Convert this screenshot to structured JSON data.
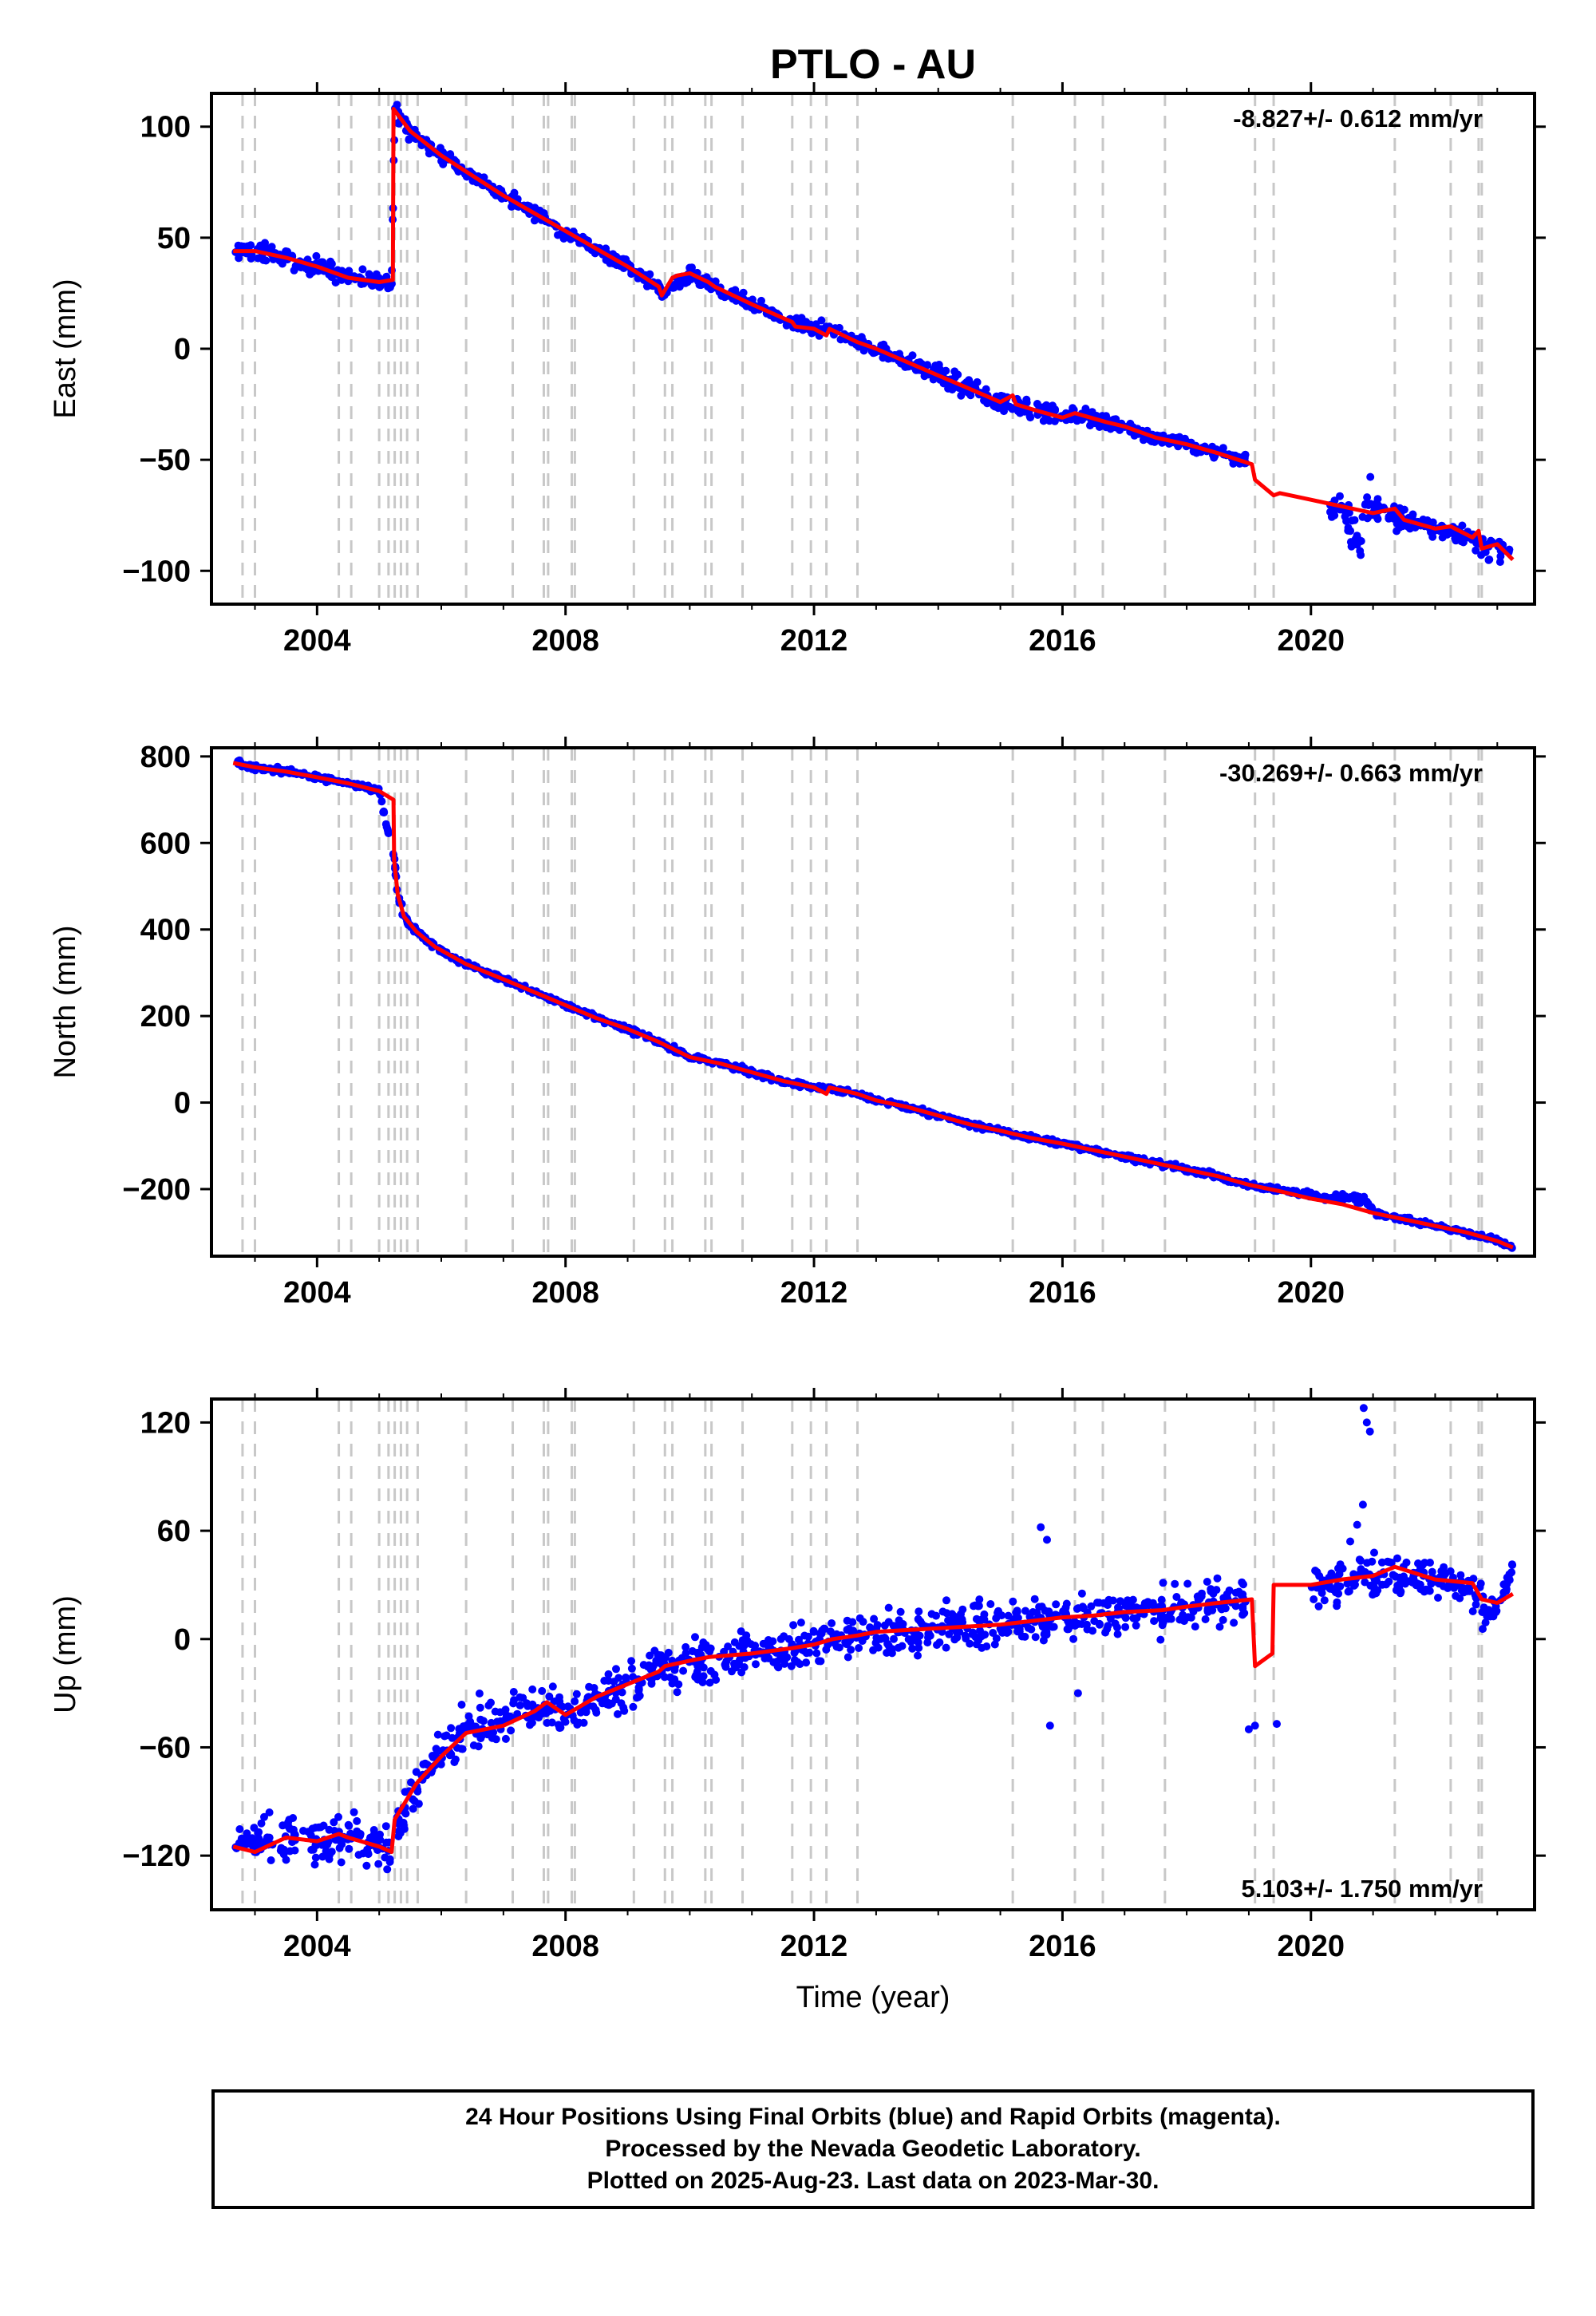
{
  "title": "PTLO - AU",
  "x_axis_label": "Time (year)",
  "x_ticks": [
    2004,
    2008,
    2012,
    2016,
    2020
  ],
  "colors": {
    "final_points": "#0000ff",
    "model": "#ff0000",
    "event_lines": "#c8c8c8",
    "frame": "#000000"
  },
  "event_years": [
    2002.8,
    2003.0,
    2004.35,
    2004.55,
    2005.0,
    2005.15,
    2005.25,
    2005.35,
    2005.45,
    2005.62,
    2006.4,
    2007.15,
    2007.65,
    2007.72,
    2008.1,
    2008.15,
    2009.1,
    2009.6,
    2009.72,
    2010.25,
    2010.35,
    2010.85,
    2011.65,
    2011.95,
    2012.2,
    2012.7,
    2015.2,
    2016.2,
    2016.65,
    2017.65,
    2019.1,
    2019.4,
    2021.35,
    2022.25,
    2022.7,
    2022.75
  ],
  "footer": {
    "line1": "24 Hour Positions Using Final Orbits (blue) and Rapid Orbits (magenta).",
    "line2": "Processed by the Nevada Geodetic Laboratory.",
    "line3": "Plotted on 2025-Aug-23. Last data on 2023-Mar-30."
  },
  "chart_data": [
    {
      "type": "scatter",
      "component": "east",
      "ylabel": "East (mm)",
      "xlabel": "",
      "rate_label": "-8.827+/- 0.612 mm/yr",
      "rate_label_position": "top-right",
      "xlim": [
        2002.3,
        2023.6
      ],
      "ylim": [
        -115,
        115
      ],
      "y_ticks": [
        100,
        50,
        0,
        -50,
        -100
      ],
      "grid": false,
      "series": [
        {
          "name": "",
          "style": "model",
          "x": [
            2002.65,
            2003.0,
            2003.5,
            2004.0,
            2004.5,
            2005.0,
            2005.22,
            2005.23,
            2005.5,
            2006.0,
            2006.5,
            2007.0,
            2007.5,
            2008.0,
            2008.5,
            2009.0,
            2009.5,
            2009.55,
            2009.72,
            2009.8,
            2010.0,
            2010.3,
            2010.4,
            2011.0,
            2011.65,
            2011.7,
            2012.0,
            2012.2,
            2012.25,
            2012.7,
            2013.0,
            2013.5,
            2014.0,
            2014.5,
            2015.0,
            2015.2,
            2015.25,
            2015.6,
            2016.0,
            2016.2,
            2016.7,
            2017.0,
            2017.5,
            2018.0,
            2018.5,
            2019.05,
            2019.1,
            2019.4,
            2019.5,
            2020.0,
            2020.5,
            2021.0,
            2021.35,
            2021.5,
            2022.0,
            2022.25,
            2022.6,
            2022.7,
            2022.75,
            2023.0,
            2023.25
          ],
          "y": [
            44,
            44,
            41,
            37,
            32,
            30,
            31,
            108,
            98,
            87,
            78,
            69,
            61,
            53,
            45,
            37,
            28,
            24,
            32,
            33,
            34,
            30,
            28,
            20,
            12,
            10,
            9,
            6,
            9,
            3,
            0,
            -6,
            -12,
            -18,
            -24,
            -21,
            -25,
            -28,
            -31,
            -29,
            -33,
            -35,
            -40,
            -43,
            -47,
            -52,
            -59,
            -66,
            -65,
            -68,
            -71,
            -74,
            -72,
            -77,
            -81,
            -80,
            -85,
            -82,
            -90,
            -88,
            -95
          ]
        },
        {
          "name": "",
          "style": "points",
          "x": [
            2002.65,
            2003.0,
            2003.5,
            2004.0,
            2004.5,
            2005.0,
            2005.2,
            2005.25,
            2005.5,
            2006.0,
            2006.5,
            2007.0,
            2007.5,
            2008.0,
            2008.5,
            2009.0,
            2009.5,
            2009.6,
            2010.0,
            2010.35,
            2011.0,
            2011.65,
            2012.0,
            2012.3,
            2012.7,
            2013.0,
            2013.5,
            2014.0,
            2014.5,
            2015.0,
            2015.25,
            2015.6,
            2016.0,
            2016.2,
            2016.7,
            2017.0,
            2017.5,
            2018.0,
            2018.5,
            2018.95
          ],
          "y": [
            44,
            44,
            41,
            37,
            32,
            30,
            31,
            107,
            98,
            87,
            78,
            69,
            61,
            53,
            45,
            37,
            28,
            24,
            34,
            28,
            20,
            11,
            9,
            9,
            3,
            0,
            -6,
            -12,
            -18,
            -24,
            -25,
            -28,
            -31,
            -29,
            -33,
            -35,
            -40,
            -43,
            -47,
            -50
          ],
          "spread": [
            4,
            4,
            4,
            4,
            4,
            4,
            4,
            4,
            3,
            3,
            3,
            3,
            3,
            3,
            3,
            3,
            3,
            3,
            3,
            3,
            3,
            3,
            3,
            3,
            3,
            3,
            4,
            4,
            4,
            4,
            4,
            4,
            3,
            3,
            3,
            3,
            3,
            3,
            3,
            3
          ]
        },
        {
          "name": "",
          "style": "points",
          "x": [
            2020.3,
            2020.5,
            2020.6,
            2020.8,
            2020.9,
            2021.0,
            2021.5,
            2022.0,
            2022.3,
            2022.6,
            2022.8,
            2023.0,
            2023.2
          ],
          "y": [
            -72,
            -70,
            -78,
            -90,
            -66,
            -72,
            -77,
            -81,
            -82,
            -86,
            -90,
            -90,
            -93
          ],
          "spread": [
            6,
            6,
            10,
            14,
            14,
            6,
            4,
            4,
            4,
            5,
            5,
            4,
            4
          ]
        }
      ]
    },
    {
      "type": "scatter",
      "component": "north",
      "ylabel": "North (mm)",
      "xlabel": "",
      "rate_label": "-30.269+/- 0.663 mm/yr",
      "rate_label_position": "top-right",
      "xlim": [
        2002.3,
        2023.6
      ],
      "ylim": [
        -355,
        820
      ],
      "y_ticks": [
        800,
        600,
        400,
        200,
        0,
        -200
      ],
      "grid": false,
      "series": [
        {
          "name": "",
          "style": "model",
          "x": [
            2002.65,
            2003.0,
            2003.5,
            2004.0,
            2004.5,
            2005.0,
            2005.23,
            2005.24,
            2005.3,
            2005.4,
            2005.6,
            2005.9,
            2006.4,
            2007.0,
            2007.5,
            2008.0,
            2008.5,
            2009.0,
            2009.5,
            2010.0,
            2010.5,
            2011.0,
            2011.5,
            2012.0,
            2012.2,
            2012.25,
            2012.7,
            2013.0,
            2013.5,
            2014.0,
            2014.5,
            2015.0,
            2015.5,
            2016.0,
            2016.5,
            2017.0,
            2017.5,
            2018.0,
            2018.5,
            2019.0,
            2019.5,
            2020.0,
            2020.5,
            2021.0,
            2021.5,
            2022.0,
            2022.5,
            2023.0,
            2023.25
          ],
          "y": [
            785,
            775,
            765,
            752,
            738,
            720,
            700,
            560,
            480,
            430,
            395,
            360,
            320,
            285,
            255,
            225,
            195,
            170,
            140,
            105,
            90,
            70,
            50,
            35,
            20,
            35,
            20,
            5,
            -10,
            -30,
            -50,
            -65,
            -82,
            -95,
            -110,
            -125,
            -140,
            -155,
            -170,
            -190,
            -205,
            -222,
            -235,
            -255,
            -270,
            -285,
            -300,
            -320,
            -335
          ]
        },
        {
          "name": "",
          "style": "points",
          "x": [
            2002.65,
            2003.0,
            2003.5,
            2004.0,
            2004.5,
            2005.0,
            2005.25,
            2005.3,
            2005.4,
            2005.6,
            2005.9,
            2006.4,
            2007.0,
            2007.5,
            2008.0,
            2008.5,
            2009.0,
            2009.5,
            2010.0,
            2010.5,
            2011.0,
            2011.5,
            2012.0,
            2012.3,
            2012.7,
            2013.0,
            2013.5,
            2014.0,
            2014.5,
            2015.0,
            2015.5,
            2016.0,
            2016.5,
            2017.0,
            2017.5,
            2018.0,
            2018.5,
            2019.0,
            2020.3,
            2020.6,
            2020.9,
            2021.0,
            2021.5,
            2022.0,
            2022.5,
            2023.0,
            2023.25
          ],
          "y": [
            785,
            775,
            765,
            752,
            738,
            720,
            560,
            480,
            430,
            395,
            360,
            320,
            285,
            255,
            225,
            195,
            170,
            140,
            105,
            90,
            70,
            50,
            35,
            30,
            20,
            5,
            -10,
            -30,
            -50,
            -65,
            -82,
            -95,
            -110,
            -125,
            -140,
            -155,
            -170,
            -190,
            -222,
            -218,
            -225,
            -255,
            -270,
            -285,
            -300,
            -320,
            -335
          ],
          "spread": [
            6,
            6,
            6,
            6,
            6,
            6,
            12,
            10,
            8,
            6,
            6,
            6,
            6,
            6,
            6,
            6,
            6,
            6,
            6,
            6,
            6,
            6,
            6,
            6,
            6,
            6,
            6,
            6,
            6,
            6,
            6,
            6,
            6,
            6,
            6,
            6,
            6,
            6,
            8,
            10,
            10,
            6,
            6,
            6,
            6,
            6,
            6
          ]
        }
      ]
    },
    {
      "type": "scatter",
      "component": "up",
      "ylabel": "Up (mm)",
      "xlabel": "Time (year)",
      "rate_label": "5.103+/- 1.750 mm/yr",
      "rate_label_position": "bottom-right",
      "xlim": [
        2002.3,
        2023.6
      ],
      "ylim": [
        -150,
        133
      ],
      "y_ticks": [
        120,
        60,
        0,
        -60,
        -120
      ],
      "grid": false,
      "series": [
        {
          "name": "",
          "style": "model",
          "x": [
            2002.65,
            2003.0,
            2003.5,
            2004.0,
            2004.35,
            2004.5,
            2005.0,
            2005.2,
            2005.25,
            2005.6,
            2006.0,
            2006.4,
            2007.0,
            2007.5,
            2007.7,
            2008.0,
            2008.5,
            2009.0,
            2009.5,
            2009.6,
            2010.0,
            2010.3,
            2011.0,
            2011.65,
            2012.0,
            2012.3,
            2012.7,
            2013.0,
            2014.0,
            2015.0,
            2015.5,
            2016.0,
            2016.5,
            2017.0,
            2017.6,
            2018.0,
            2018.5,
            2019.05,
            2019.1,
            2019.38,
            2019.4,
            2020.0,
            2020.5,
            2021.0,
            2021.35,
            2022.0,
            2022.6,
            2022.75,
            2023.0,
            2023.25
          ],
          "y": [
            -115,
            -118,
            -110,
            -112,
            -108,
            -110,
            -115,
            -118,
            -100,
            -80,
            -65,
            -52,
            -48,
            -40,
            -35,
            -42,
            -32,
            -25,
            -18,
            -15,
            -12,
            -10,
            -8,
            -5,
            -3,
            0,
            2,
            4,
            6,
            8,
            10,
            12,
            13,
            15,
            16,
            18,
            20,
            22,
            -15,
            -8,
            30,
            30,
            33,
            35,
            40,
            33,
            31,
            22,
            20,
            25
          ]
        },
        {
          "name": "",
          "style": "points",
          "x": [
            2002.65,
            2003.0,
            2003.5,
            2004.0,
            2004.5,
            2005.0,
            2005.2,
            2005.4,
            2005.6,
            2006.0,
            2006.4,
            2007.0,
            2007.5,
            2008.0,
            2008.5,
            2009.0,
            2009.5,
            2010.0,
            2010.5,
            2011.0,
            2011.5,
            2012.0,
            2012.5,
            2013.0,
            2013.5,
            2014.0,
            2014.5,
            2015.0,
            2015.5,
            2016.0,
            2016.5,
            2017.0,
            2017.5,
            2018.0,
            2018.5,
            2018.95
          ],
          "y": [
            -115,
            -112,
            -110,
            -112,
            -110,
            -115,
            -118,
            -95,
            -80,
            -65,
            -50,
            -45,
            -38,
            -40,
            -32,
            -25,
            -18,
            -10,
            -12,
            -8,
            -5,
            -3,
            0,
            2,
            4,
            6,
            8,
            8,
            10,
            12,
            13,
            15,
            16,
            18,
            20,
            22
          ],
          "spread": [
            12,
            12,
            12,
            12,
            12,
            12,
            12,
            12,
            12,
            12,
            12,
            12,
            12,
            12,
            12,
            12,
            12,
            12,
            12,
            12,
            12,
            12,
            12,
            12,
            12,
            12,
            12,
            12,
            12,
            12,
            12,
            12,
            12,
            12,
            12,
            12
          ]
        },
        {
          "name": "",
          "style": "points",
          "x": [
            2020.0,
            2020.4,
            2020.6,
            2020.8,
            2020.9,
            2021.0,
            2021.3,
            2021.6,
            2022.0,
            2022.3,
            2022.6,
            2022.7,
            2022.8,
            2023.0,
            2023.25
          ],
          "y": [
            28,
            32,
            38,
            45,
            40,
            33,
            36,
            35,
            33,
            32,
            28,
            25,
            12,
            18,
            40
          ],
          "spread": [
            10,
            12,
            18,
            30,
            22,
            10,
            10,
            10,
            10,
            10,
            10,
            10,
            8,
            8,
            8
          ]
        },
        {
          "name": "",
          "style": "outliers",
          "x": [
            2015.65,
            2015.75,
            2015.8,
            2016.25,
            2019.0,
            2019.1,
            2019.45,
            2020.85,
            2020.9,
            2020.95
          ],
          "y": [
            62,
            55,
            -48,
            -30,
            -50,
            -48,
            -47,
            128,
            120,
            115
          ]
        }
      ]
    }
  ]
}
